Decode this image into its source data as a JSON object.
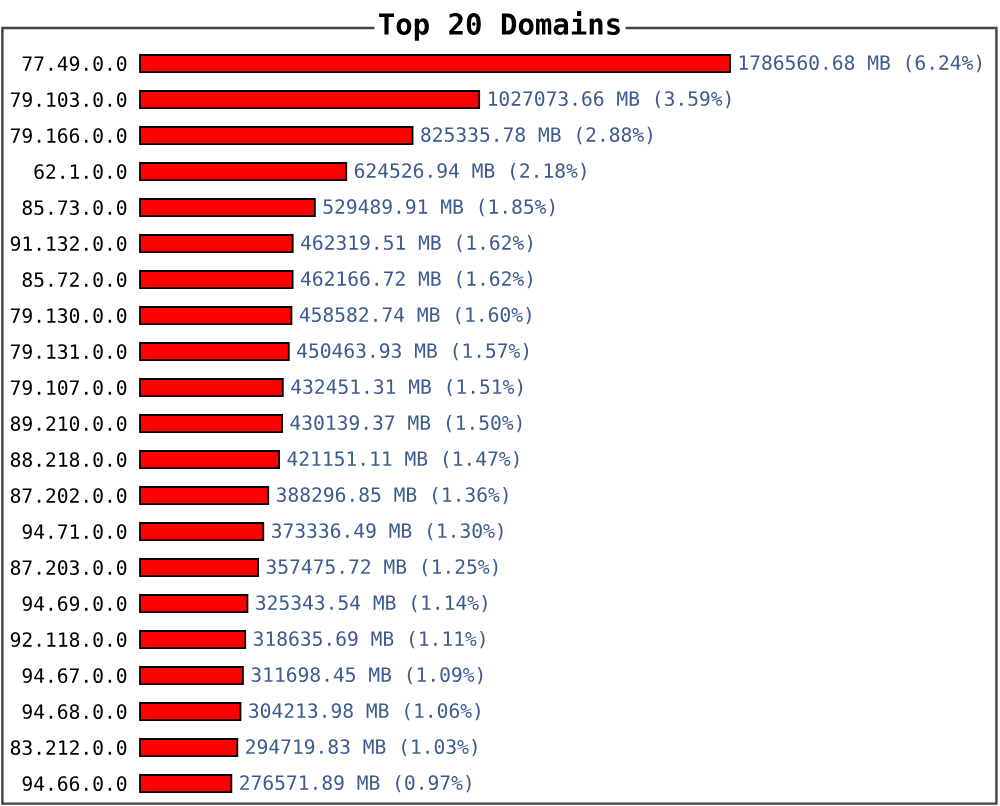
{
  "chart_data": {
    "type": "bar",
    "orientation": "horizontal",
    "title": "Top 20 Domains",
    "color": "#ff0000",
    "categories": [
      "77.49.0.0",
      "79.103.0.0",
      "79.166.0.0",
      "62.1.0.0",
      "85.73.0.0",
      "91.132.0.0",
      "85.72.0.0",
      "79.130.0.0",
      "79.131.0.0",
      "79.107.0.0",
      "89.210.0.0",
      "88.218.0.0",
      "87.202.0.0",
      "94.71.0.0",
      "87.203.0.0",
      "94.69.0.0",
      "92.118.0.0",
      "94.67.0.0",
      "94.68.0.0",
      "83.212.0.0",
      "94.66.0.0"
    ],
    "values": [
      1786560.68,
      1027073.66,
      825335.78,
      624526.94,
      529489.91,
      462319.51,
      462166.72,
      458582.74,
      450463.93,
      432451.31,
      430139.37,
      421151.11,
      388296.85,
      373336.49,
      357475.72,
      325343.54,
      318635.69,
      311698.45,
      304213.98,
      294719.83,
      276571.89
    ],
    "value_labels": [
      "1786560.68 MB (6.24%)",
      "1027073.66 MB (3.59%)",
      "825335.78 MB (2.88%)",
      "624526.94 MB (2.18%)",
      "529489.91 MB (1.85%)",
      "462319.51 MB (1.62%)",
      "462166.72 MB (1.62%)",
      "458582.74 MB (1.60%)",
      "450463.93 MB (1.57%)",
      "432451.31 MB (1.51%)",
      "430139.37 MB (1.50%)",
      "421151.11 MB (1.47%)",
      "388296.85 MB (1.36%)",
      "373336.49 MB (1.30%)",
      "357475.72 MB (1.25%)",
      "325343.54 MB (1.14%)",
      "318635.69 MB (1.11%)",
      "311698.45 MB (1.09%)",
      "304213.98 MB (1.06%)",
      "294719.83 MB (1.03%)",
      "276571.89 MB (0.97%)"
    ]
  }
}
